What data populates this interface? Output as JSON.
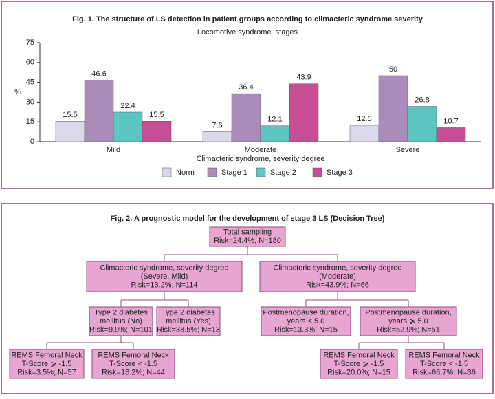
{
  "chart_data": {
    "type": "bar",
    "title": "Fig. 1. The structure of LS detection in patient groups according to climacteric syndrome severity",
    "subtitle": "Locomotive syndrome. stages",
    "y_label": "%",
    "x_label": "Climacteric syndrome, severity degree",
    "categories": [
      "Mild",
      "Moderate",
      "Severe"
    ],
    "series": [
      {
        "name": "Norm",
        "color": "#dcd8ec",
        "values": [
          15.5,
          7.6,
          12.5
        ]
      },
      {
        "name": "Stage 1",
        "color": "#a98cb9",
        "values": [
          46.6,
          36.4,
          50
        ]
      },
      {
        "name": "Stage 2",
        "color": "#5cc5c0",
        "values": [
          22.4,
          12.1,
          26.8
        ]
      },
      {
        "name": "Stage 3",
        "color": "#c84e94",
        "values": [
          15.5,
          43.9,
          10.7
        ]
      }
    ],
    "ylim": [
      0,
      75
    ],
    "yticks": [
      0,
      15,
      30,
      45,
      60,
      75
    ],
    "grid": false,
    "legend": "bottom"
  },
  "diagram": {
    "title": "Fig. 2. A prognostic model for the development of stage 3 LS (Decision Tree)",
    "nodes": [
      {
        "lines": [
          "Total sampling",
          "Risk=24.4%; N=180"
        ]
      },
      {
        "lines": [
          "Climacteric syndrome, severity degree",
          "(Severe, Mild)",
          "Risk=13.2%; N=114"
        ]
      },
      {
        "lines": [
          "Climacteric syndrome, severity degree",
          "(Moderate)",
          "Risk=43.9%; N=66"
        ]
      },
      {
        "lines": [
          "Type 2 diabetes",
          "mellitus (No)",
          "Risk=9.9%; N=101"
        ]
      },
      {
        "lines": [
          "Type 2 diabetes",
          "mellitus (Yes)",
          "Risk=38.5%; N=13"
        ]
      },
      {
        "lines": [
          "Postmenopause duration,",
          "years < 5.0",
          "Risk=13.3%; N=15"
        ]
      },
      {
        "lines": [
          "Postmenopause duration,",
          "years ⩾ 5.0",
          "Risk=52.9%; N=51"
        ]
      },
      {
        "lines": [
          "REMS Femoral Neck",
          "T-Score ⩾ -1.5",
          "Risk=3.5%; N=57"
        ]
      },
      {
        "lines": [
          "REMS Femoral Neck",
          "T-Score < -1.5",
          "Risk=18.2%; N=44"
        ]
      },
      {
        "lines": [
          "REMS Femoral Neck",
          "T-Score ⩾ -1.5",
          "Risk=20.0%; N=15"
        ]
      },
      {
        "lines": [
          "REMS Femoral Neck",
          "T-Score < -1.5",
          "Risk=66.7%; N=36"
        ]
      }
    ]
  }
}
